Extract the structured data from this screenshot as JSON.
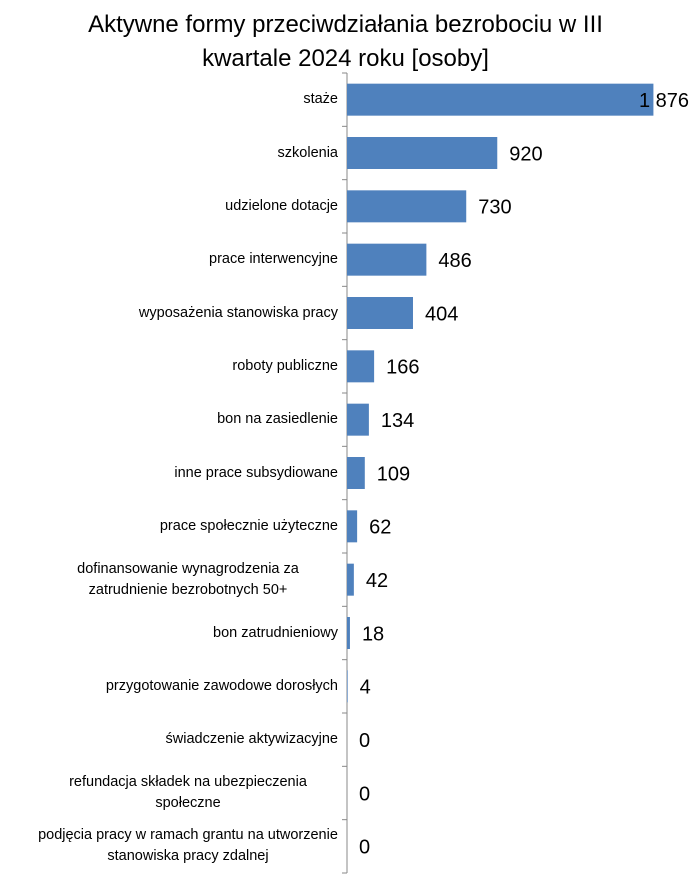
{
  "chart_data": {
    "type": "bar",
    "orientation": "horizontal",
    "title": "Aktywne formy przeciwdziałania bezrobociu w III kwartale 2024 roku [osoby]",
    "categories": [
      "staże",
      "szkolenia",
      "udzielone dotacje",
      "prace interwencyjne",
      "wyposażenia stanowiska pracy",
      "roboty publiczne",
      "bon na zasiedlenie",
      "inne prace subsydiowane",
      "prace społecznie użyteczne",
      "dofinansowanie wynagrodzenia za zatrudnienie bezrobotnych 50+",
      "bon zatrudnieniowy",
      "przygotowanie zawodowe dorosłych",
      "świadczenie aktywizacyjne",
      "refundacja składek na ubezpieczenia społeczne",
      "podjęcia pracy w ramach grantu na utworzenie stanowiska pracy zdalnej"
    ],
    "values": [
      1876,
      920,
      730,
      486,
      404,
      166,
      134,
      109,
      62,
      42,
      18,
      4,
      0,
      0,
      0
    ],
    "value_labels": [
      "1 876",
      "920",
      "730",
      "486",
      "404",
      "166",
      "134",
      "109",
      "62",
      "42",
      "18",
      "4",
      "0",
      "0",
      "0"
    ],
    "color": "#4f81bd",
    "xlim": [
      0,
      2100
    ]
  }
}
